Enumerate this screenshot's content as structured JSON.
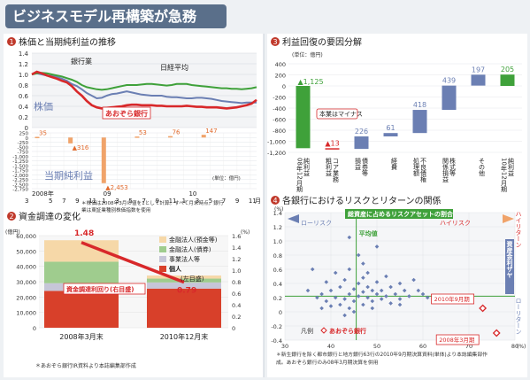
{
  "page": {
    "title": "ビジネスモデル再構築が急務",
    "colors": {
      "title_bg": "#5a6f8a",
      "panel_bg": "#ffffff",
      "page_bg": "#eef1f4",
      "accent_red": "#d8282a",
      "green": "#3fa13a",
      "blue": "#6b7fb3",
      "orange": "#f0a36a"
    }
  },
  "panels": {
    "p1": {
      "num": "1",
      "title": "株価と当期純利益の推移"
    },
    "p2": {
      "num": "2",
      "title": "資金調達の変化"
    },
    "p3": {
      "num": "3",
      "title": "利益回復の要因分解"
    },
    "p4": {
      "num": "4",
      "title": "各銀行におけるリスクとリターンの関係"
    }
  },
  "chart_data": [
    {
      "id": "stock",
      "type": "line",
      "ylim": [
        0,
        1.4
      ],
      "yticks": [
        "0",
        "0.2",
        "0.4",
        "0.6",
        "0.8",
        "1.0",
        "1.2",
        "1.4"
      ],
      "x_count": 46,
      "series": [
        {
          "name": "銀行業",
          "color": "#6b7fb3",
          "values": [
            1.0,
            1.02,
            1.0,
            0.98,
            0.97,
            0.95,
            0.92,
            0.88,
            0.82,
            0.78,
            0.72,
            0.65,
            0.6,
            0.55,
            0.56,
            0.6,
            0.63,
            0.64,
            0.66,
            0.68,
            0.66,
            0.64,
            0.62,
            0.61,
            0.6,
            0.6,
            0.6,
            0.58,
            0.57,
            0.57,
            0.56,
            0.55,
            0.55,
            0.56,
            0.56,
            0.55,
            0.54,
            0.52,
            0.5,
            0.49,
            0.48,
            0.47,
            0.46,
            0.47,
            0.47,
            0.47
          ]
        },
        {
          "name": "日経平均",
          "color": "#3fa13a",
          "values": [
            1.0,
            1.02,
            1.03,
            1.02,
            1.0,
            0.98,
            0.96,
            0.93,
            0.9,
            0.86,
            0.8,
            0.76,
            0.74,
            0.72,
            0.71,
            0.72,
            0.74,
            0.76,
            0.78,
            0.8,
            0.8,
            0.8,
            0.81,
            0.82,
            0.82,
            0.81,
            0.8,
            0.79,
            0.8,
            0.82,
            0.82,
            0.82,
            0.8,
            0.79,
            0.78,
            0.77,
            0.76,
            0.75,
            0.74,
            0.74,
            0.73,
            0.73,
            0.72,
            0.73,
            0.74,
            0.76
          ]
        },
        {
          "name": "あおぞら銀行",
          "color": "#d8282a",
          "values": [
            1.0,
            1.05,
            1.02,
            0.98,
            0.95,
            0.92,
            0.88,
            0.85,
            0.78,
            0.68,
            0.6,
            0.5,
            0.42,
            0.38,
            0.36,
            0.37,
            0.38,
            0.39,
            0.4,
            0.42,
            0.43,
            0.43,
            0.42,
            0.42,
            0.42,
            0.41,
            0.41,
            0.4,
            0.4,
            0.4,
            0.4,
            0.41,
            0.4,
            0.39,
            0.39,
            0.38,
            0.38,
            0.38,
            0.37,
            0.36,
            0.37,
            0.38,
            0.4,
            0.42,
            0.45,
            0.52
          ]
        }
      ],
      "series_label": "株価"
    },
    {
      "id": "net_income",
      "type": "bar",
      "ylim": [
        -2750,
        250
      ],
      "yticks": [
        "250",
        "0",
        "-250",
        "-500",
        "-750",
        "-1,000",
        "-1,250",
        "-1,500",
        "-1,750",
        "-2,000",
        "-2,250",
        "-2,500",
        "-2,750"
      ],
      "ytick_values": [
        250,
        0,
        -250,
        -500,
        -750,
        -1000,
        -1250,
        -1500,
        -1750,
        -2000,
        -2250,
        -2500,
        -2750
      ],
      "points": [
        {
          "x": 0,
          "value": 35,
          "label": "35"
        },
        {
          "x": 7,
          "value": -316,
          "label": "▲316"
        },
        {
          "x": 14,
          "value": -2453,
          "label": "▲2,453"
        },
        {
          "x": 21,
          "value": 53,
          "label": "53"
        },
        {
          "x": 28,
          "value": 76,
          "label": "76"
        },
        {
          "x": 35,
          "value": 147,
          "label": "147"
        }
      ],
      "series_label": "当期純利益",
      "unit": "(単位：億円)",
      "x_year_labels": [
        {
          "text": "2008年",
          "at": 0
        },
        {
          "text": "09",
          "at": 15
        },
        {
          "text": "10",
          "at": 33
        }
      ],
      "x_month_labels": [
        "3",
        "5",
        "7",
        "9",
        "11",
        "1",
        "3",
        "5",
        "7",
        "9",
        "11",
        "1",
        "3",
        "5",
        "7",
        "9",
        "11"
      ],
      "x_month_prefix": "月",
      "note": "＊株価は2008年3月の値を1として計算。すべて月末時点。銀行業は東証業種別株価指数を使用"
    },
    {
      "id": "funding",
      "type": "bar",
      "ylim": [
        0,
        60000
      ],
      "yticks": [
        "60,000",
        "50,000",
        "40,000",
        "30,000",
        "20,000",
        "10,000",
        "0"
      ],
      "y2ticks": [
        "1.6",
        "1.4",
        "1.2",
        "1.0",
        "0.8",
        "0.6",
        "0.4",
        "0.2",
        "0"
      ],
      "y2_unit": "(%)",
      "y_unit": "(億円)",
      "categories": [
        "2008年3月末",
        "2010年12月末"
      ],
      "stack": [
        {
          "name": "個人",
          "color": "#d8402a",
          "values": [
            24000,
            25500
          ]
        },
        {
          "name": "事業法人等",
          "color": "#c6c6d8",
          "values": [
            5000,
            4000
          ]
        },
        {
          "name": "金融法人(債券)",
          "color": "#9fcc8e",
          "values": [
            14000,
            2500
          ]
        },
        {
          "name": "金融法人(預金等)",
          "color": "#f6d8a8",
          "values": [
            14000,
            2000
          ]
        }
      ],
      "rate_line": {
        "name": "資金調達利回り(右目盛)",
        "values": [
          1.48,
          0.79
        ],
        "labels": [
          "1.48",
          "0.79"
        ]
      },
      "legend_note": "(左目盛)",
      "note": "＊あおぞら銀行IR資料より本誌編集部作成"
    },
    {
      "id": "profit_factors",
      "type": "bar",
      "ylim": [
        -1200,
        400
      ],
      "yticks": [
        "400",
        "200",
        "0",
        "-200",
        "-400",
        "-600",
        "-800",
        "-1,000",
        "-1,200"
      ],
      "unit": "(単位：億円)",
      "bars": [
        {
          "name": "純利益\n08年12月期",
          "value": -1125,
          "label": "▲1,125",
          "color": "#3fa13a",
          "kind": "total"
        },
        {
          "name": "コア業務\n粗利益",
          "value": -13,
          "label": "▲13",
          "color": "#d8282a",
          "kind": "delta"
        },
        {
          "name": "債券等\n損益",
          "value": 226,
          "label": "226",
          "color": "#6b7fb3",
          "kind": "delta"
        },
        {
          "name": "経費",
          "value": 61,
          "label": "61",
          "color": "#6b7fb3",
          "kind": "delta"
        },
        {
          "name": "不良債権\n処理額",
          "value": 418,
          "label": "418",
          "color": "#6b7fb3",
          "kind": "delta"
        },
        {
          "name": "株式等\n関係損益",
          "value": 439,
          "label": "439",
          "color": "#6b7fb3",
          "kind": "delta"
        },
        {
          "name": "その他",
          "value": 197,
          "label": "197",
          "color": "#6b7fb3",
          "kind": "delta"
        },
        {
          "name": "純利益\n10年12月期",
          "value": 205,
          "label": "205",
          "color": "#3fa13a",
          "kind": "total"
        }
      ],
      "callout": "本業はマイナス"
    },
    {
      "id": "risk_return",
      "type": "scatter",
      "xlim": [
        30,
        80
      ],
      "ylim": [
        -0.4,
        1.4
      ],
      "xticks": [
        "30",
        "40",
        "50",
        "60",
        "70",
        "80"
      ],
      "yticks": [
        "1.4",
        "1.2",
        "1.0",
        "0.8",
        "0.6",
        "0.4",
        "0.2",
        "0",
        "-0.2",
        "-0.4"
      ],
      "y_unit": "(%)",
      "x_unit": "(%)",
      "avg_x": 45.5,
      "avg_y": 0.22,
      "points": [
        [
          35,
          0.3
        ],
        [
          36,
          0.6
        ],
        [
          37,
          0.2
        ],
        [
          38,
          0.25
        ],
        [
          38,
          0.05
        ],
        [
          39,
          0.42
        ],
        [
          39,
          0.15
        ],
        [
          40,
          0.3
        ],
        [
          40,
          0.08
        ],
        [
          41,
          0.2
        ],
        [
          41,
          0.55
        ],
        [
          42,
          0.35
        ],
        [
          42,
          0.1
        ],
        [
          43,
          0.18
        ],
        [
          43,
          0.45
        ],
        [
          44,
          0.25
        ],
        [
          44,
          0.05
        ],
        [
          44,
          0.6
        ],
        [
          45,
          0.32
        ],
        [
          45,
          0.15
        ],
        [
          45,
          0.0
        ],
        [
          46,
          0.22
        ],
        [
          46,
          0.4
        ],
        [
          46,
          0.8
        ],
        [
          47,
          0.28
        ],
        [
          47,
          0.1
        ],
        [
          47,
          0.48
        ],
        [
          48,
          0.2
        ],
        [
          48,
          0.35
        ],
        [
          48,
          0.55
        ],
        [
          49,
          0.15
        ],
        [
          49,
          0.3
        ],
        [
          49,
          0.05
        ],
        [
          50,
          0.25
        ],
        [
          50,
          0.42
        ],
        [
          50,
          0.92
        ],
        [
          51,
          0.18
        ],
        [
          51,
          0.3
        ],
        [
          52,
          0.22
        ],
        [
          52,
          0.5
        ],
        [
          53,
          0.35
        ],
        [
          53,
          0.12
        ],
        [
          54,
          0.25
        ],
        [
          55,
          0.4
        ],
        [
          55,
          0.18
        ],
        [
          56,
          0.3
        ],
        [
          57,
          0.22
        ],
        [
          58,
          0.45
        ],
        [
          59,
          0.3
        ],
        [
          60,
          0.25
        ],
        [
          61,
          0.2
        ],
        [
          44,
          1.05
        ],
        [
          55,
          0.1
        ],
        [
          43,
          -0.05
        ],
        [
          47,
          0.68
        ]
      ],
      "highlight": [
        {
          "x": 73,
          "y": 0.05,
          "label": "2010年9月期"
        },
        {
          "x": 76,
          "y": -0.3,
          "label": "2008年3月期"
        }
      ],
      "labels": {
        "top_band": "総資産に占めるリスクアセットの割合",
        "low_risk": "ローリスク",
        "high_risk": "ハイリスク",
        "high_return": "ハイリターン",
        "low_return": "ローリターン",
        "right_band": "資産金利ザヤ",
        "avg": "平均値",
        "legend": "凡例",
        "legend_bank": "あおぞら銀行"
      },
      "note": "＊新生銀行を除く都市銀行と地方銀行63行の2010年9月期決算資料(単体)より本誌編集部作成。あおぞら銀行のみ08年3月期決算を併用"
    }
  ]
}
